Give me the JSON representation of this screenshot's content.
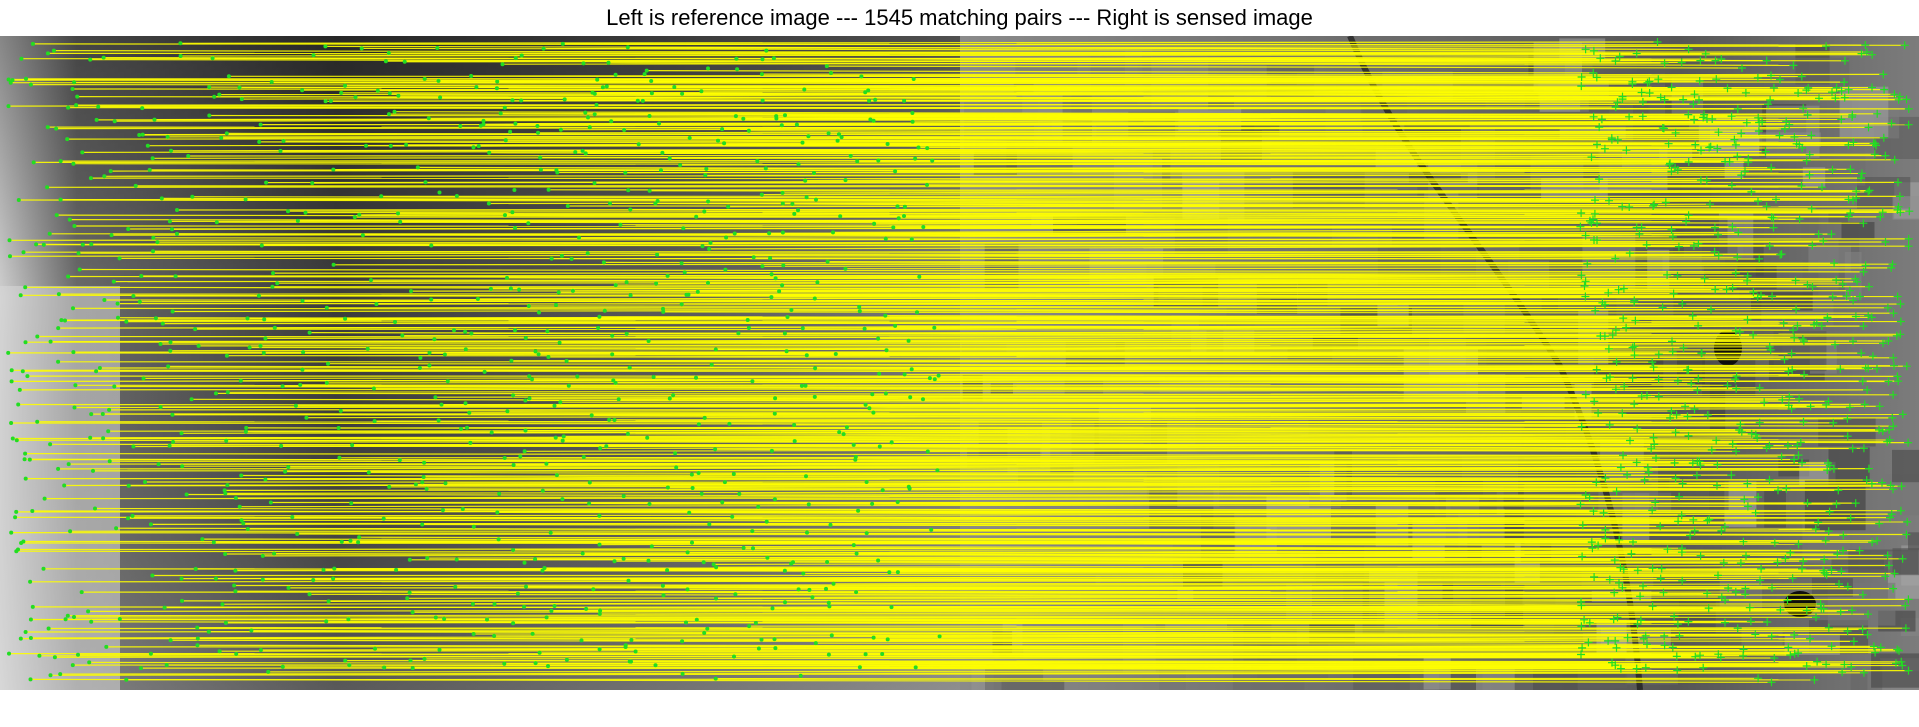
{
  "title": "Left is reference image --- 1545 matching pairs --- Right is sensed image",
  "figure": {
    "left_image": "reference image",
    "right_image": "sensed image",
    "matching_pairs": 1545
  },
  "colors": {
    "match_line": "#ffff00",
    "keypoint": "#22dd22",
    "background": "#ffffff",
    "text": "#000000"
  },
  "icons": {
    "keypoint_marker": "dot",
    "sensed_marker": "plus-mark"
  }
}
